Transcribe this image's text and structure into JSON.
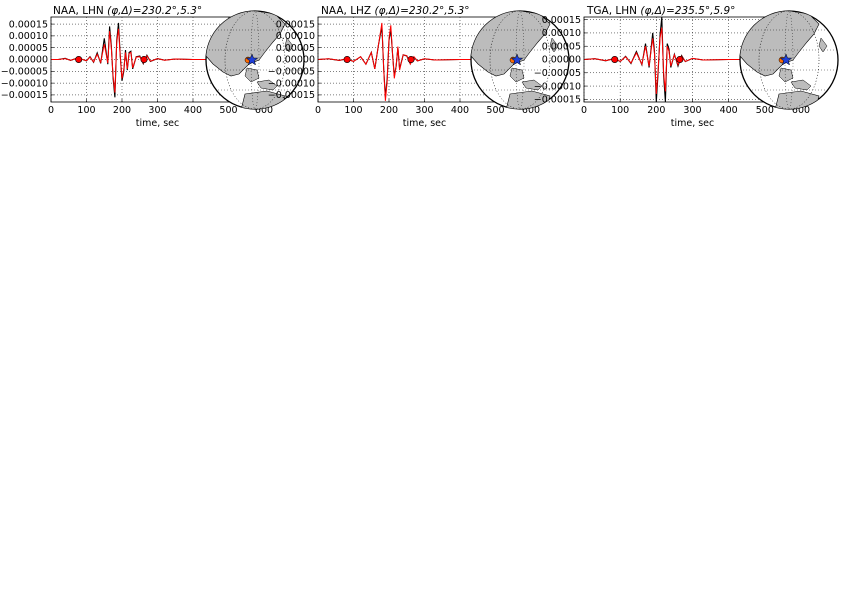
{
  "colors": {
    "observed": "#000000",
    "synthetic": "#ff0000",
    "marker": "#ff0000",
    "epicenter_star": "#1f3fd8",
    "land": "#bcbcbc",
    "ocean": "#ffffff"
  },
  "chart_data": [
    {
      "type": "line",
      "title_prefix": "NAA, LHN",
      "title_math": "(φ,Δ)=230.2°,5.3°",
      "xlabel": "time, sec",
      "ylabel": "",
      "xlim": [
        0,
        600
      ],
      "ylim": [
        -0.00018,
        0.00018
      ],
      "xticks": [
        "0",
        "100",
        "200",
        "300",
        "400",
        "500",
        "600"
      ],
      "yticks": [
        "0.00015",
        "0.00010",
        "0.00005",
        "0.00000",
        "−0.00005",
        "−0.00010",
        "−0.00015"
      ],
      "grid": true,
      "markers_x": [
        78,
        262
      ],
      "series": [
        {
          "x": [
            0,
            20,
            40,
            55,
            70,
            85,
            100,
            110,
            120,
            130,
            140,
            150,
            160,
            165,
            170,
            175,
            180,
            185,
            190,
            195,
            200,
            205,
            210,
            215,
            220,
            225,
            230,
            240,
            250,
            260,
            270,
            280,
            300,
            320,
            350,
            400,
            450,
            600
          ],
          "y": [
            0,
            0,
            5e-06,
            -4e-06,
            4e-06,
            2e-06,
            -6e-06,
            1.2e-05,
            -1.2e-05,
            2.8e-05,
            -1.6e-05,
            9e-05,
            -2e-05,
            0.00014,
            6e-05,
            -8e-05,
            -0.00016,
            8e-05,
            0.000155,
            2e-05,
            -9e-05,
            -5e-05,
            4e-05,
            -4.5e-05,
            3e-05,
            3.5e-05,
            -4e-05,
            1.2e-05,
            1.5e-05,
            -1.8e-05,
            1.8e-05,
            -8e-06,
            4e-06,
            -3e-06,
            2e-06,
            0,
            0,
            0
          ]
        },
        {
          "x": [
            0,
            20,
            40,
            55,
            70,
            85,
            100,
            110,
            120,
            130,
            140,
            150,
            160,
            165,
            170,
            175,
            180,
            185,
            190,
            195,
            200,
            205,
            210,
            215,
            220,
            225,
            230,
            240,
            250,
            260,
            270,
            280,
            300,
            320,
            350,
            400,
            450,
            600
          ],
          "y": [
            0,
            0,
            4e-06,
            -3e-06,
            3e-06,
            2e-06,
            -5e-06,
            1e-05,
            -1e-05,
            2.2e-05,
            -1.2e-05,
            6.5e-05,
            -1.5e-05,
            0.00012,
            5e-05,
            -7e-05,
            -0.00014,
            7e-05,
            0.00013,
            1.5e-05,
            -8e-05,
            -4e-05,
            3e-05,
            -4e-05,
            2.5e-05,
            3e-05,
            -3.5e-05,
            1e-05,
            1.2e-05,
            -1.5e-05,
            1.5e-05,
            -7e-06,
            4e-06,
            -3e-06,
            2e-06,
            0,
            0,
            0
          ]
        }
      ]
    },
    {
      "type": "line",
      "title_prefix": "NAA, LHZ",
      "title_math": "(φ,Δ)=230.2°,5.3°",
      "xlabel": "time, sec",
      "ylabel": "",
      "xlim": [
        0,
        600
      ],
      "ylim": [
        -0.00018,
        0.00018
      ],
      "xticks": [
        "0",
        "100",
        "200",
        "300",
        "400",
        "500",
        "600"
      ],
      "yticks": [
        "0.00015",
        "0.00010",
        "0.00005",
        "0.00000",
        "−0.00005",
        "−0.00010",
        "−0.00015"
      ],
      "grid": true,
      "markers_x": [
        82,
        262
      ],
      "series": [
        {
          "x": [
            0,
            30,
            60,
            80,
            100,
            120,
            135,
            150,
            160,
            170,
            180,
            185,
            190,
            195,
            200,
            205,
            210,
            215,
            220,
            225,
            230,
            240,
            250,
            260,
            270,
            280,
            300,
            330,
            400,
            600
          ],
          "y": [
            0,
            3e-06,
            -4e-06,
            3e-06,
            -8e-06,
            1.2e-05,
            -2e-05,
            3e-05,
            -4e-05,
            6e-05,
            0.00014,
            -4e-05,
            -0.00016,
            -8e-05,
            8e-05,
            0.00013,
            2e-05,
            -7e-05,
            -3e-05,
            5e-05,
            -4e-05,
            2e-05,
            1.5e-05,
            -1.8e-05,
            1e-05,
            -6e-06,
            3e-06,
            -2e-06,
            0,
            0
          ]
        },
        {
          "x": [
            0,
            30,
            60,
            80,
            100,
            120,
            135,
            150,
            160,
            170,
            180,
            185,
            190,
            195,
            200,
            205,
            210,
            215,
            220,
            225,
            230,
            240,
            250,
            260,
            270,
            280,
            300,
            330,
            400,
            600
          ],
          "y": [
            0,
            3e-06,
            -4e-06,
            3e-06,
            -8e-06,
            1.2e-05,
            -2e-05,
            3e-05,
            -4e-05,
            6e-05,
            0.000155,
            -4e-05,
            -0.000175,
            -9e-05,
            9e-05,
            0.000145,
            2e-05,
            -8e-05,
            -3e-05,
            5.5e-05,
            -4.5e-05,
            2e-05,
            1.6e-05,
            -2e-05,
            1.2e-05,
            -6e-06,
            3e-06,
            -2e-06,
            0,
            0
          ]
        }
      ]
    },
    {
      "type": "line",
      "title_prefix": "TGA, LHN",
      "title_math": "(φ,Δ)=235.5°,5.9°",
      "xlabel": "time, sec",
      "ylabel": "",
      "xlim": [
        0,
        600
      ],
      "ylim": [
        -0.00016,
        0.00016
      ],
      "xticks": [
        "0",
        "100",
        "200",
        "300",
        "400",
        "500",
        "600"
      ],
      "yticks": [
        "0.00015",
        "0.00010",
        "0.00005",
        "0.00000",
        "−0.00005",
        "−0.00010",
        "−0.00015"
      ],
      "grid": true,
      "markers_x": [
        85,
        265
      ],
      "series": [
        {
          "x": [
            0,
            30,
            60,
            85,
            100,
            115,
            130,
            145,
            160,
            170,
            180,
            190,
            195,
            200,
            205,
            210,
            215,
            220,
            225,
            230,
            235,
            240,
            250,
            260,
            270,
            280,
            300,
            330,
            400,
            600
          ],
          "y": [
            0,
            3e-06,
            -5e-06,
            4e-06,
            -8e-06,
            1.2e-05,
            -1.5e-05,
            3e-05,
            -2e-05,
            6e-05,
            -3e-05,
            0.0001,
            3e-05,
            -0.00016,
            -5e-05,
            9e-05,
            0.00016,
            -6e-05,
            -0.00016,
            6e-05,
            4e-05,
            -3e-05,
            2e-05,
            -2.5e-05,
            1.5e-05,
            -8e-06,
            4e-06,
            -2e-06,
            0,
            0
          ]
        },
        {
          "x": [
            0,
            30,
            60,
            85,
            100,
            115,
            130,
            145,
            160,
            170,
            180,
            190,
            195,
            200,
            205,
            210,
            215,
            220,
            225,
            230,
            235,
            240,
            250,
            260,
            270,
            280,
            300,
            330,
            400,
            600
          ],
          "y": [
            0,
            3e-06,
            -4e-06,
            3e-06,
            -7e-06,
            1e-05,
            -1.3e-05,
            2.5e-05,
            -1.8e-05,
            5e-05,
            -2.5e-05,
            8e-05,
            2e-05,
            -0.00013,
            -4e-05,
            8e-05,
            0.00012,
            -5e-05,
            -0.00012,
            5e-05,
            3e-05,
            -2.5e-05,
            1.8e-05,
            -2e-05,
            1.2e-05,
            -7e-06,
            4e-06,
            -2e-06,
            0,
            0
          ]
        }
      ]
    }
  ]
}
